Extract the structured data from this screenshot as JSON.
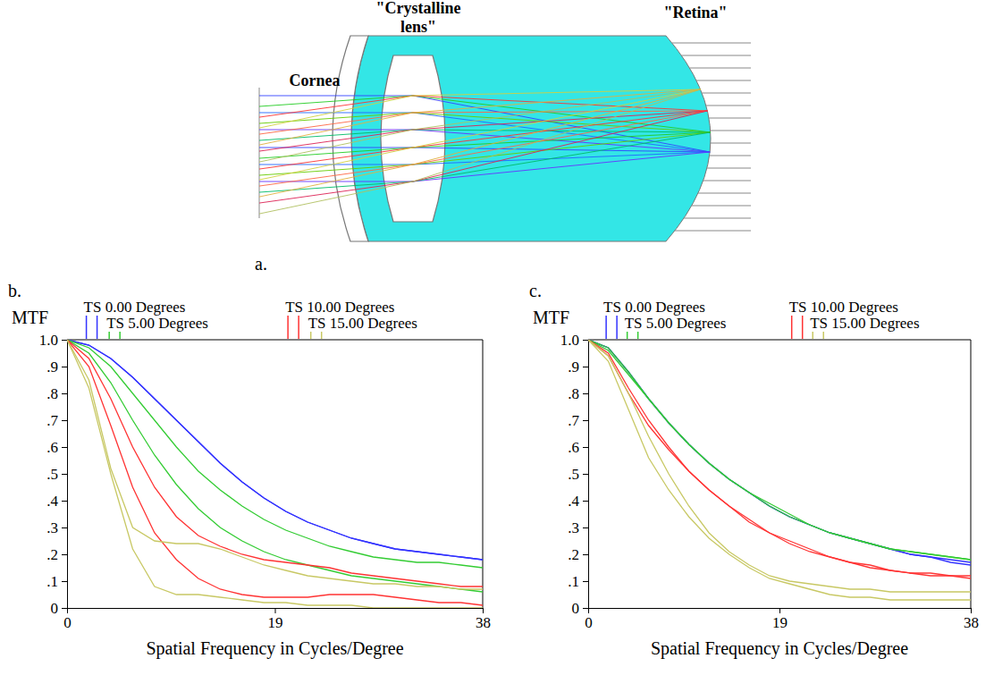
{
  "chart_data": [
    {
      "type": "line",
      "panel": "b.",
      "x_label": "Spatial Frequency in Cycles/Degree",
      "y_label": "MTF",
      "x": [
        0,
        2,
        4,
        6,
        8,
        10,
        12,
        14,
        16,
        18,
        20,
        22,
        24,
        26,
        28,
        30,
        32,
        34,
        36,
        38
      ],
      "xlim": [
        0,
        38
      ],
      "xticks": [
        0,
        19,
        38
      ],
      "ylim": [
        0,
        1
      ],
      "yticks": [
        0,
        {
          "value": 0.1,
          "label": ".1"
        },
        {
          "value": 0.2,
          "label": ".2"
        },
        {
          "value": 0.3,
          "label": ".3"
        },
        {
          "value": 0.4,
          "label": ".4"
        },
        {
          "value": 0.5,
          "label": ".5"
        },
        {
          "value": 0.6,
          "label": ".6"
        },
        {
          "value": 0.7,
          "label": ".7"
        },
        {
          "value": 0.8,
          "label": ".8"
        },
        {
          "value": 0.9,
          "label": ".9"
        },
        {
          "value": 1,
          "label": "1.0"
        }
      ],
      "grid": false,
      "legend": "top",
      "series": [
        {
          "name": "TS 0.00 Degrees",
          "color": "#3333ff",
          "values": [
            1,
            0.98,
            0.93,
            0.86,
            0.78,
            0.7,
            0.62,
            0.54,
            0.47,
            0.41,
            0.36,
            0.32,
            0.29,
            0.26,
            0.24,
            0.22,
            0.21,
            0.2,
            0.19,
            0.18
          ]
        },
        {
          "color": "#3333ff",
          "values": [
            1,
            0.98,
            0.93,
            0.86,
            0.78,
            0.7,
            0.62,
            0.54,
            0.47,
            0.41,
            0.36,
            0.32,
            0.29,
            0.26,
            0.24,
            0.22,
            0.21,
            0.2,
            0.19,
            0.18
          ]
        },
        {
          "name": "TS 5.00 Degrees",
          "color": "#33cc33",
          "values": [
            1,
            0.97,
            0.9,
            0.8,
            0.7,
            0.6,
            0.51,
            0.44,
            0.38,
            0.33,
            0.29,
            0.26,
            0.23,
            0.21,
            0.19,
            0.18,
            0.17,
            0.17,
            0.16,
            0.15
          ]
        },
        {
          "color": "#33cc33",
          "values": [
            1,
            0.95,
            0.84,
            0.7,
            0.57,
            0.46,
            0.37,
            0.3,
            0.25,
            0.21,
            0.18,
            0.16,
            0.14,
            0.12,
            0.11,
            0.1,
            0.09,
            0.08,
            0.07,
            0.06
          ]
        },
        {
          "name": "TS 10.00 Degrees",
          "color": "#ff3333",
          "values": [
            1,
            0.93,
            0.78,
            0.6,
            0.45,
            0.34,
            0.27,
            0.23,
            0.2,
            0.18,
            0.17,
            0.16,
            0.15,
            0.13,
            0.12,
            0.11,
            0.1,
            0.09,
            0.08,
            0.08
          ]
        },
        {
          "color": "#ff3333",
          "values": [
            1,
            0.9,
            0.68,
            0.45,
            0.28,
            0.18,
            0.11,
            0.07,
            0.05,
            0.04,
            0.04,
            0.04,
            0.05,
            0.05,
            0.05,
            0.04,
            0.03,
            0.02,
            0.02,
            0.01
          ]
        },
        {
          "name": "TS 15.00 Degrees",
          "color": "#c8c864",
          "values": [
            1,
            0.85,
            0.52,
            0.3,
            0.25,
            0.24,
            0.24,
            0.22,
            0.19,
            0.16,
            0.14,
            0.12,
            0.11,
            0.1,
            0.09,
            0.09,
            0.08,
            0.08,
            0.07,
            0.07
          ]
        },
        {
          "color": "#c8c864",
          "values": [
            1,
            0.82,
            0.5,
            0.22,
            0.08,
            0.05,
            0.05,
            0.04,
            0.03,
            0.02,
            0.02,
            0.01,
            0.01,
            0.01,
            0,
            0,
            0,
            0,
            0,
            0
          ]
        }
      ]
    },
    {
      "type": "line",
      "panel": "c.",
      "x_label": "Spatial Frequency in Cycles/Degree",
      "y_label": "MTF",
      "x": [
        0,
        2,
        4,
        6,
        8,
        10,
        12,
        14,
        16,
        18,
        20,
        22,
        24,
        26,
        28,
        30,
        32,
        34,
        36,
        38
      ],
      "xlim": [
        0,
        38
      ],
      "xticks": [
        0,
        19,
        38
      ],
      "ylim": [
        0,
        1
      ],
      "yticks": [
        0,
        {
          "value": 0.1,
          "label": ".1"
        },
        {
          "value": 0.2,
          "label": ".2"
        },
        {
          "value": 0.3,
          "label": ".3"
        },
        {
          "value": 0.4,
          "label": ".4"
        },
        {
          "value": 0.5,
          "label": ".5"
        },
        {
          "value": 0.6,
          "label": ".6"
        },
        {
          "value": 0.7,
          "label": ".7"
        },
        {
          "value": 0.8,
          "label": ".8"
        },
        {
          "value": 0.9,
          "label": ".9"
        },
        {
          "value": 1,
          "label": "1.0"
        }
      ],
      "grid": false,
      "legend": "top",
      "series": [
        {
          "name": "TS 0.00 Degrees",
          "color": "#3333ff",
          "values": [
            1,
            0.97,
            0.88,
            0.78,
            0.69,
            0.61,
            0.54,
            0.48,
            0.43,
            0.38,
            0.34,
            0.31,
            0.28,
            0.26,
            0.24,
            0.22,
            0.2,
            0.19,
            0.18,
            0.17
          ]
        },
        {
          "color": "#3333ff",
          "values": [
            1,
            0.97,
            0.88,
            0.78,
            0.69,
            0.61,
            0.54,
            0.48,
            0.43,
            0.38,
            0.34,
            0.31,
            0.28,
            0.26,
            0.24,
            0.22,
            0.2,
            0.19,
            0.17,
            0.16
          ]
        },
        {
          "name": "TS 5.00 Degrees",
          "color": "#33cc33",
          "values": [
            1,
            0.97,
            0.88,
            0.78,
            0.69,
            0.61,
            0.54,
            0.48,
            0.43,
            0.39,
            0.35,
            0.31,
            0.28,
            0.26,
            0.24,
            0.22,
            0.21,
            0.2,
            0.19,
            0.18
          ]
        },
        {
          "color": "#33cc33",
          "values": [
            1,
            0.96,
            0.87,
            0.78,
            0.69,
            0.61,
            0.54,
            0.48,
            0.43,
            0.38,
            0.34,
            0.31,
            0.28,
            0.26,
            0.24,
            0.22,
            0.21,
            0.2,
            0.19,
            0.18
          ]
        },
        {
          "name": "TS 10.00 Degrees",
          "color": "#ff3333",
          "values": [
            1,
            0.95,
            0.82,
            0.7,
            0.6,
            0.51,
            0.44,
            0.38,
            0.32,
            0.28,
            0.24,
            0.21,
            0.19,
            0.17,
            0.15,
            0.14,
            0.13,
            0.12,
            0.12,
            0.11
          ]
        },
        {
          "color": "#ff3333",
          "values": [
            1,
            0.94,
            0.8,
            0.68,
            0.59,
            0.51,
            0.44,
            0.38,
            0.33,
            0.28,
            0.25,
            0.22,
            0.19,
            0.17,
            0.16,
            0.14,
            0.13,
            0.13,
            0.12,
            0.12
          ]
        },
        {
          "name": "TS 15.00 Degrees",
          "color": "#c8c864",
          "values": [
            1,
            0.94,
            0.8,
            0.64,
            0.5,
            0.38,
            0.28,
            0.21,
            0.16,
            0.12,
            0.1,
            0.09,
            0.08,
            0.07,
            0.07,
            0.06,
            0.06,
            0.06,
            0.06,
            0.06
          ]
        },
        {
          "color": "#c8c864",
          "values": [
            1,
            0.92,
            0.74,
            0.56,
            0.44,
            0.34,
            0.26,
            0.2,
            0.15,
            0.11,
            0.09,
            0.07,
            0.05,
            0.04,
            0.04,
            0.03,
            0.03,
            0.03,
            0.03,
            0.03
          ]
        }
      ]
    }
  ],
  "diagram": {
    "labels": [
      "Cornea",
      "\"Crystalline lens\"",
      "\"Retina\""
    ],
    "panel": "a."
  }
}
